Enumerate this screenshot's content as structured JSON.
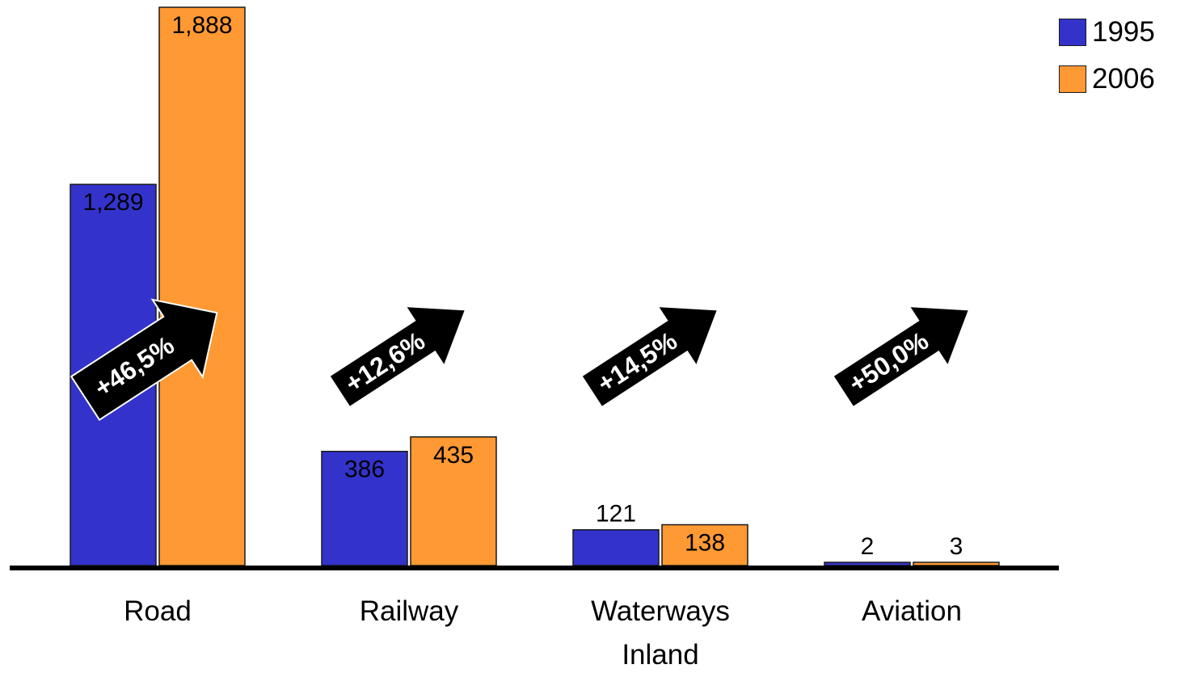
{
  "chart_data": {
    "type": "bar",
    "categories": [
      [
        "Road"
      ],
      [
        "Railway"
      ],
      [
        "Waterways",
        "Inland"
      ],
      [
        "Aviation"
      ]
    ],
    "series": [
      {
        "name": "1995",
        "color": "#3333cc",
        "values": [
          1289,
          386,
          121,
          2
        ],
        "labels": [
          "1,289",
          "386",
          "121",
          "2"
        ]
      },
      {
        "name": "2006",
        "color": "#ff9933",
        "values": [
          1888,
          435,
          138,
          3
        ],
        "labels": [
          "1,888",
          "435",
          "138",
          "3"
        ]
      }
    ],
    "growth_labels": [
      "+46,5%",
      "+12,6%",
      "+14,5%",
      "+50,0%"
    ],
    "ylim": [
      0,
      1888
    ],
    "legend_position": "top-right",
    "grid": false,
    "axis_color": "#000000",
    "arrow_color": "#000000"
  }
}
